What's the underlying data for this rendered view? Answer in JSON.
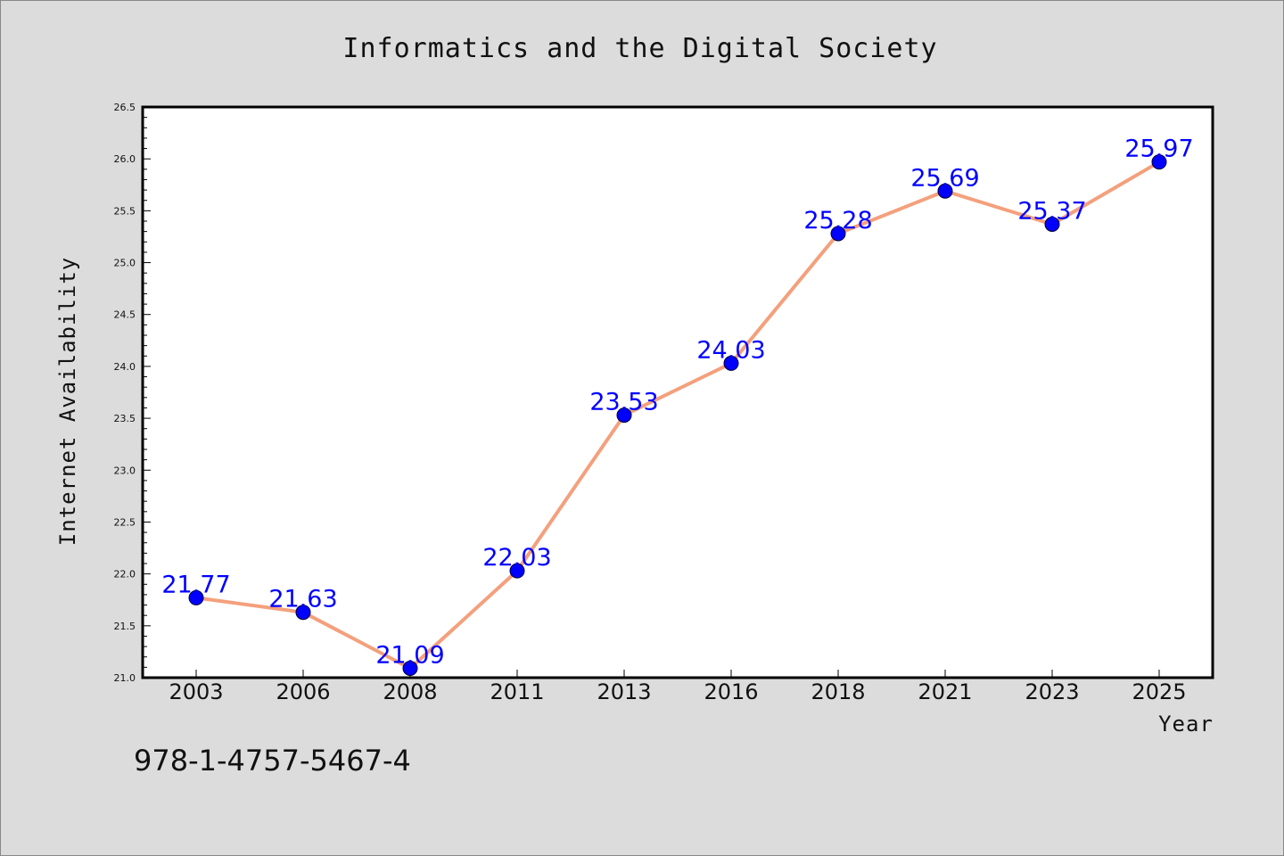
{
  "chart_data": {
    "type": "line",
    "title": "Informatics and the Digital Society",
    "xlabel": "Year",
    "ylabel": "Internet Availability",
    "categories": [
      "2003",
      "2006",
      "2008",
      "2011",
      "2013",
      "2016",
      "2018",
      "2021",
      "2023",
      "2025"
    ],
    "series": [
      {
        "values": [
          21.77,
          21.63,
          21.09,
          22.03,
          23.53,
          24.03,
          25.28,
          25.69,
          25.37,
          25.97
        ]
      }
    ],
    "data_labels": [
      "21.77",
      "21.63",
      "21.09",
      "22.03",
      "23.53",
      "24.03",
      "25.28",
      "25.69",
      "25.37",
      "25.97"
    ],
    "ylim": [
      21.0,
      26.5
    ],
    "yticks": [
      "21.0",
      "21.5",
      "22.0",
      "22.5",
      "23.0",
      "23.5",
      "24.0",
      "24.5",
      "25.0",
      "25.5",
      "26.0",
      "26.5"
    ],
    "grid": false,
    "legend": "none",
    "colors": {
      "line": "#f4a07c",
      "marker": "#0000ff",
      "label": "#0000ff",
      "plot_bg": "#ffffff",
      "page_bg": "#dcdcdc"
    }
  },
  "footer": {
    "isbn": "978-1-4757-5467-4"
  }
}
